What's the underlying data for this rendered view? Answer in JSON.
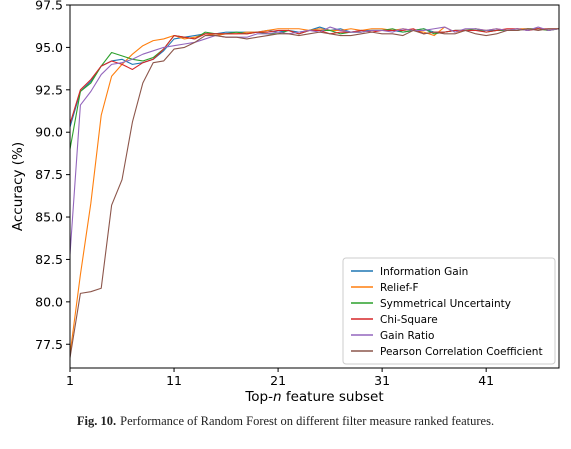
{
  "caption": {
    "label": "Fig. 10.",
    "text": "Performance of Random Forest on different filter measure ranked features."
  },
  "chart_data": {
    "type": "line",
    "title": "",
    "xlabel_prefix": "Top-",
    "xlabel_italic": "n",
    "xlabel_suffix": " feature subset",
    "ylabel": "Accuracy (%)",
    "xlim": [
      1,
      48
    ],
    "ylim": [
      76.1,
      97.5
    ],
    "xticks": [
      1,
      11,
      21,
      31,
      41
    ],
    "xtick_labels": [
      "1",
      "11",
      "21",
      "31",
      "41"
    ],
    "yticks": [
      77.5,
      80.0,
      82.5,
      85.0,
      87.5,
      90.0,
      92.5,
      95.0,
      97.5
    ],
    "ytick_labels": [
      "77.5",
      "80.0",
      "82.5",
      "85.0",
      "87.5",
      "90.0",
      "92.5",
      "95.0",
      "97.5"
    ],
    "grid": false,
    "legend_position": "lower-right",
    "x": [
      1,
      2,
      3,
      4,
      5,
      6,
      7,
      8,
      9,
      10,
      11,
      12,
      13,
      14,
      15,
      16,
      17,
      18,
      19,
      20,
      21,
      22,
      23,
      24,
      25,
      26,
      27,
      28,
      29,
      30,
      31,
      32,
      33,
      34,
      35,
      36,
      37,
      38,
      39,
      40,
      41,
      42,
      43,
      44,
      45,
      46,
      47,
      48
    ],
    "series": [
      {
        "name": "Information Gain",
        "color": "#1f77b4",
        "values": [
          90.3,
          92.4,
          93.0,
          93.9,
          94.2,
          94.3,
          94.0,
          94.1,
          94.3,
          94.8,
          95.5,
          95.6,
          95.7,
          95.8,
          95.8,
          95.9,
          95.9,
          95.9,
          95.9,
          96.0,
          95.9,
          96.0,
          95.9,
          96.0,
          96.2,
          96.0,
          96.1,
          95.9,
          96.0,
          96.0,
          96.0,
          96.0,
          95.9,
          96.0,
          96.1,
          95.9,
          95.9,
          96.0,
          96.0,
          96.0,
          96.0,
          96.0,
          96.0,
          96.1,
          96.0,
          96.1,
          96.0,
          96.1
        ]
      },
      {
        "name": "Relief-F",
        "color": "#ff7f0e",
        "values": [
          76.9,
          81.6,
          85.8,
          91.0,
          93.3,
          94.0,
          94.6,
          95.1,
          95.4,
          95.5,
          95.7,
          95.5,
          95.6,
          95.8,
          95.7,
          95.8,
          95.8,
          95.9,
          95.9,
          96.0,
          96.1,
          96.1,
          96.1,
          96.0,
          96.1,
          96.0,
          96.0,
          96.1,
          96.0,
          96.1,
          96.1,
          96.0,
          96.1,
          96.0,
          95.9,
          95.7,
          96.2,
          95.9,
          96.0,
          96.1,
          96.0,
          96.1,
          96.0,
          96.1,
          96.1,
          96.1,
          96.0,
          96.1
        ]
      },
      {
        "name": "Symmetrical Uncertainty",
        "color": "#2ca02c",
        "values": [
          89.0,
          92.4,
          92.9,
          93.9,
          94.7,
          94.5,
          94.3,
          94.2,
          94.4,
          94.9,
          95.7,
          95.6,
          95.5,
          95.9,
          95.8,
          95.8,
          95.9,
          95.8,
          95.9,
          95.8,
          95.8,
          96.0,
          95.8,
          96.0,
          96.0,
          96.0,
          95.8,
          95.9,
          95.9,
          96.0,
          96.0,
          96.1,
          95.9,
          96.0,
          96.1,
          95.8,
          95.9,
          96.0,
          96.0,
          96.1,
          95.9,
          96.0,
          96.0,
          96.0,
          96.1,
          96.1,
          96.0,
          96.1
        ]
      },
      {
        "name": "Chi-Square",
        "color": "#d62728",
        "values": [
          90.5,
          92.5,
          93.1,
          93.9,
          94.2,
          94.0,
          93.7,
          94.1,
          94.3,
          94.9,
          95.7,
          95.6,
          95.5,
          95.8,
          95.8,
          95.8,
          95.8,
          95.8,
          95.9,
          95.9,
          96.0,
          96.0,
          95.8,
          96.0,
          96.0,
          95.8,
          95.9,
          95.9,
          96.0,
          95.9,
          96.0,
          96.0,
          96.0,
          96.1,
          95.8,
          95.9,
          95.9,
          96.0,
          96.0,
          96.0,
          95.9,
          96.0,
          96.1,
          96.1,
          96.0,
          96.1,
          96.1,
          96.1
        ]
      },
      {
        "name": "Gain Ratio",
        "color": "#9467bd",
        "values": [
          82.8,
          91.6,
          92.4,
          93.4,
          94.0,
          94.1,
          94.3,
          94.6,
          94.8,
          95.0,
          95.1,
          95.2,
          95.3,
          95.5,
          95.7,
          95.6,
          95.6,
          95.6,
          95.8,
          95.8,
          95.9,
          95.8,
          95.9,
          96.0,
          95.9,
          96.2,
          96.0,
          95.9,
          95.9,
          96.0,
          96.0,
          95.9,
          96.1,
          96.0,
          96.0,
          96.1,
          96.2,
          95.9,
          96.1,
          96.1,
          96.0,
          96.1,
          96.0,
          96.1,
          96.0,
          96.2,
          96.0,
          96.1
        ]
      },
      {
        "name": "Pearson Correlation Coefficient",
        "color": "#8c564b",
        "values": [
          76.7,
          80.5,
          80.6,
          80.8,
          85.7,
          87.2,
          90.6,
          92.9,
          94.1,
          94.2,
          94.9,
          95.0,
          95.3,
          95.7,
          95.7,
          95.6,
          95.6,
          95.5,
          95.6,
          95.7,
          95.8,
          95.8,
          95.7,
          95.8,
          95.9,
          95.8,
          95.7,
          95.7,
          95.8,
          95.9,
          95.8,
          95.8,
          95.7,
          96.0,
          95.8,
          95.9,
          95.8,
          95.8,
          96.0,
          95.8,
          95.7,
          95.8,
          96.0,
          96.0,
          96.1,
          96.0,
          96.1,
          96.1
        ]
      }
    ]
  }
}
